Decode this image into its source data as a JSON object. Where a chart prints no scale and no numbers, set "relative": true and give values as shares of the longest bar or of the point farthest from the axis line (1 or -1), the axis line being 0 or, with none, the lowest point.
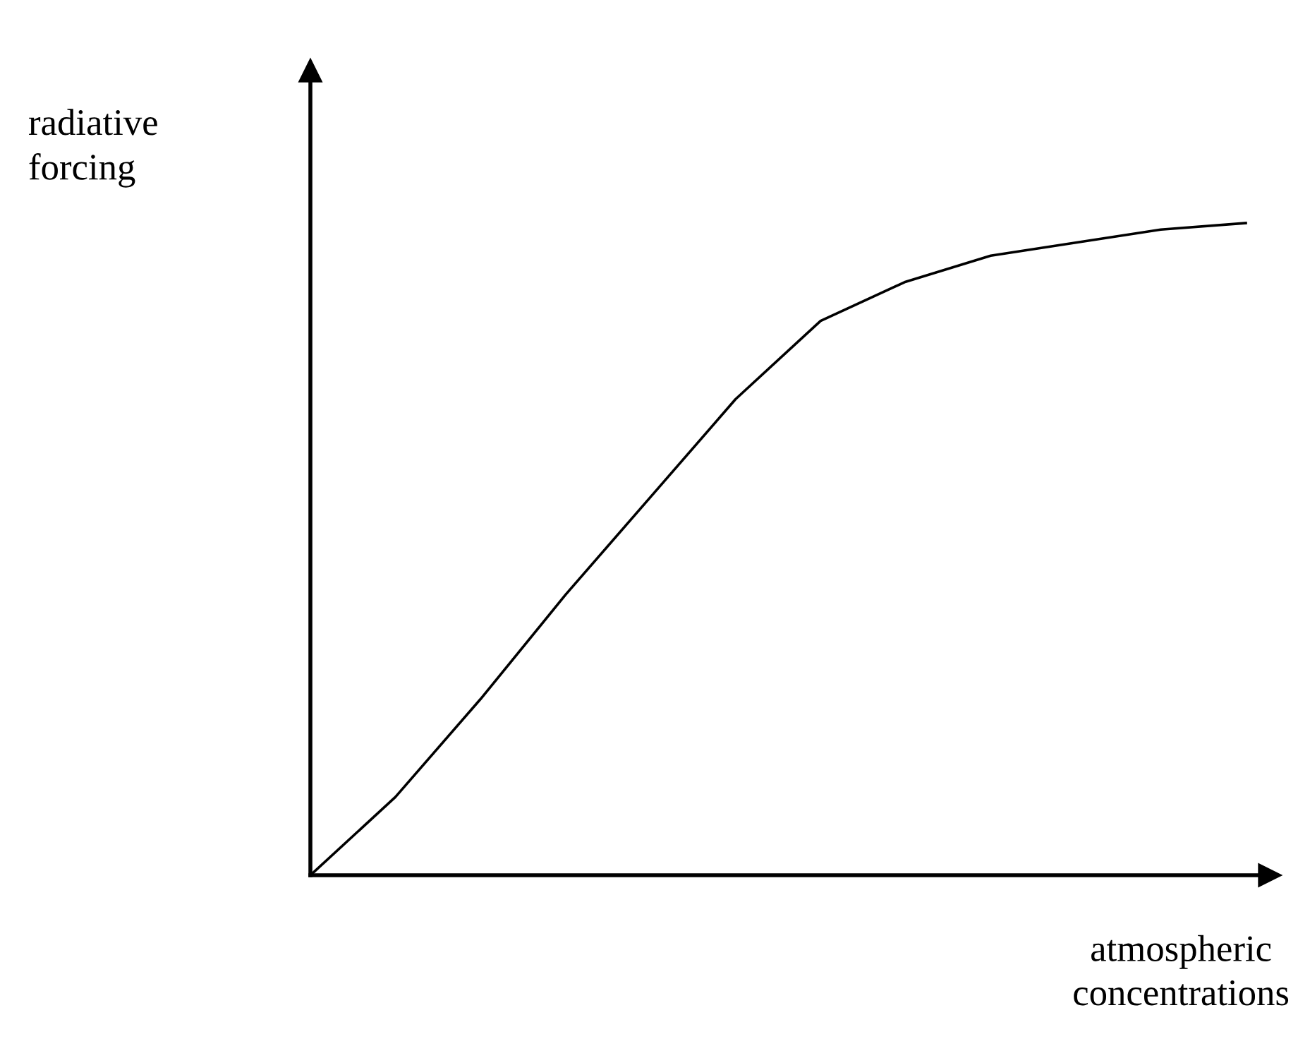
{
  "chart_data": {
    "type": "line",
    "relative": true,
    "xlabel": "atmospheric concentrations",
    "ylabel": "radiative forcing",
    "categories": [
      null,
      null,
      null,
      null,
      null,
      null,
      null,
      null,
      null,
      null,
      null,
      null
    ],
    "series": [
      {
        "color": "#000000",
        "values": [
          0,
          0.12,
          0.27,
          0.43,
          0.58,
          0.73,
          0.85,
          0.91,
          0.95,
          0.97,
          0.99,
          1
        ]
      }
    ],
    "legend": false,
    "marker": "none",
    "line_style": "solid"
  }
}
